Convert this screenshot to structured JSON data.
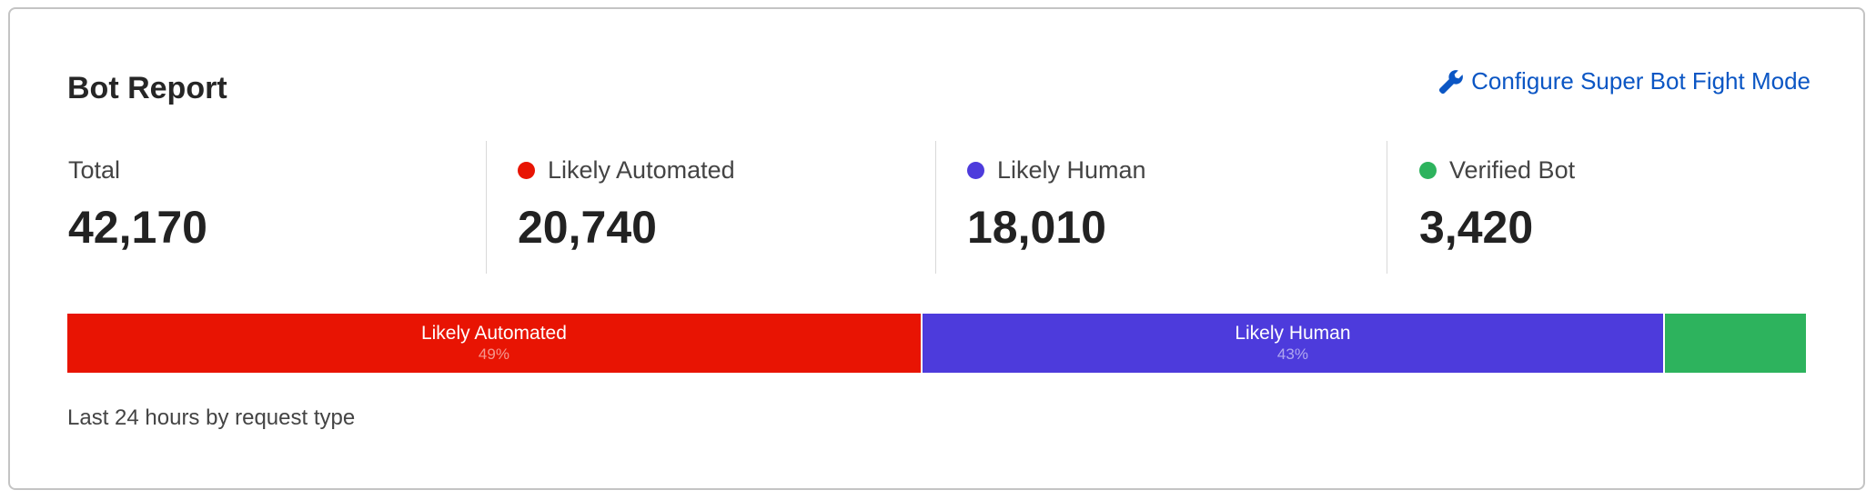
{
  "header": {
    "title": "Bot Report",
    "configure_link": "Configure Super Bot Fight Mode",
    "configure_icon": "wrench-icon"
  },
  "stats": [
    {
      "label": "Total",
      "value": "42,170"
    },
    {
      "label": "Likely Automated",
      "value": "20,740",
      "color": "#e81403"
    },
    {
      "label": "Likely Human",
      "value": "18,010",
      "color": "#4d3bdc"
    },
    {
      "label": "Verified Bot",
      "value": "3,420",
      "color": "#2db35d"
    }
  ],
  "bar": [
    {
      "label": "Likely Automated",
      "percent": "49%",
      "value": 20740,
      "color": "#e81403"
    },
    {
      "label": "Likely Human",
      "percent": "43%",
      "value": 18010,
      "color": "#4d3bdc"
    },
    {
      "label": "",
      "percent": "",
      "value": 3420,
      "color": "#2db35d"
    }
  ],
  "footer": "Last 24 hours by request type"
}
